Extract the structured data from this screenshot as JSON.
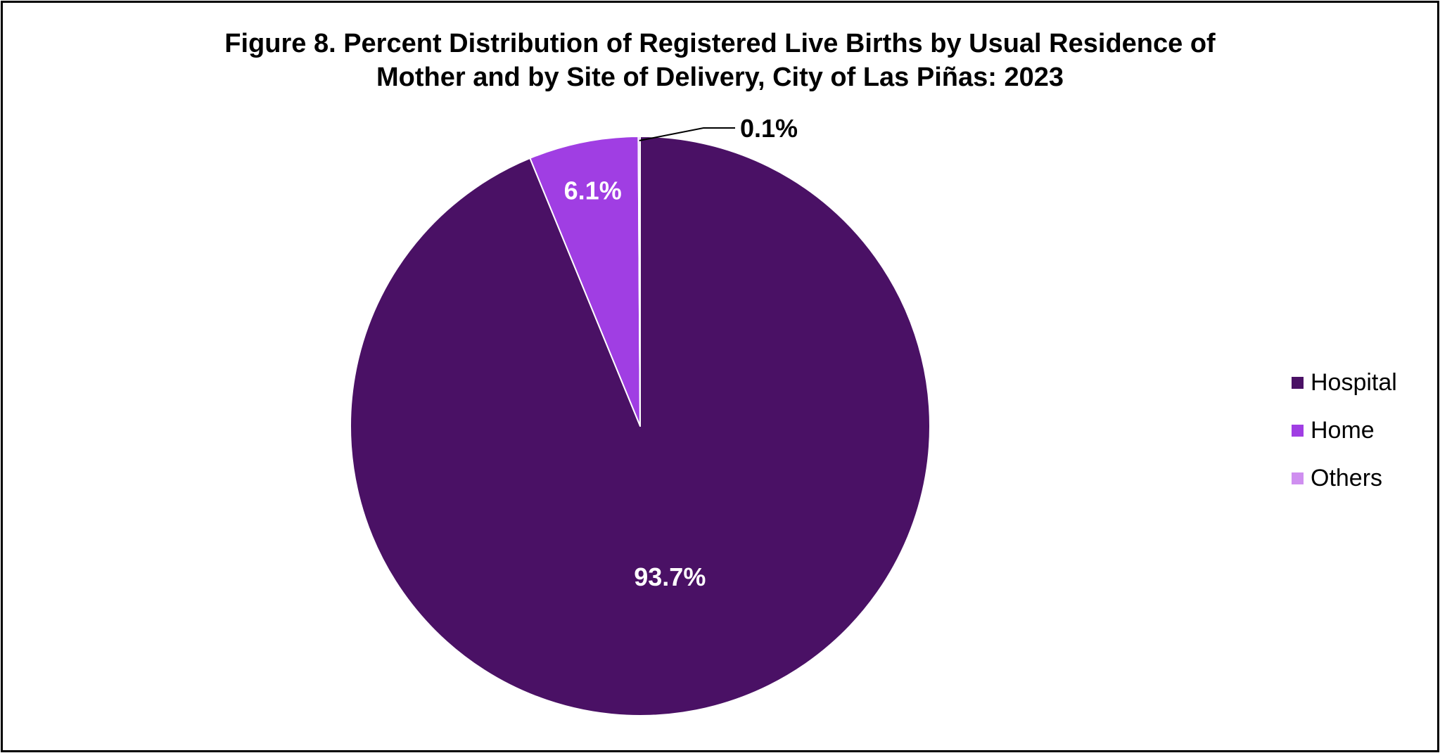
{
  "chart_data": {
    "type": "pie",
    "title_lines": [
      "Figure 8. Percent Distribution of Registered Live Births by Usual Residence of",
      "Mother and by Site of Delivery, City of Las Piñas: 2023"
    ],
    "slices": [
      {
        "label": "Hospital",
        "value": 93.7,
        "display": "93.7%",
        "color": "#4a1165",
        "label_color": "#ffffff"
      },
      {
        "label": "Home",
        "value": 6.1,
        "display": "6.1%",
        "color": "#a03ee3",
        "label_color": "#ffffff"
      },
      {
        "label": "Others",
        "value": 0.1,
        "display": "0.1%",
        "color": "#cf8ff0",
        "label_color": "#000000",
        "leader_line": true
      }
    ],
    "legend_position": "right",
    "start_angle": "12 o'clock",
    "direction": "clockwise"
  }
}
